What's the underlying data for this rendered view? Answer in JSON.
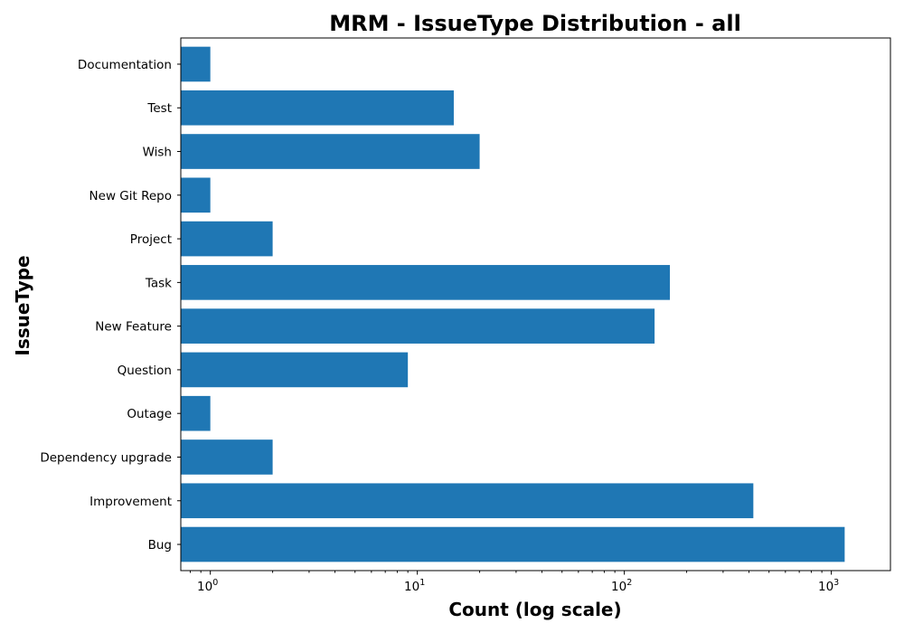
{
  "chart_data": {
    "type": "bar",
    "orientation": "horizontal",
    "title": "MRM - IssueType Distribution - all",
    "xlabel": "Count (log scale)",
    "ylabel": "IssueType",
    "xscale": "log",
    "xlim": [
      0.72,
      1930
    ],
    "bar_color": "#1f77b4",
    "grid": false,
    "categories": [
      "Bug",
      "Improvement",
      "Dependency upgrade",
      "Outage",
      "Question",
      "New Feature",
      "Task",
      "Project",
      "New Git Repo",
      "Wish",
      "Test",
      "Documentation"
    ],
    "values": [
      1160,
      420,
      2,
      1,
      9,
      140,
      166,
      2,
      1,
      20,
      15,
      1
    ],
    "xticks": [
      {
        "base": "10",
        "exp": "0",
        "value": 1
      },
      {
        "base": "10",
        "exp": "1",
        "value": 10
      },
      {
        "base": "10",
        "exp": "2",
        "value": 100
      },
      {
        "base": "10",
        "exp": "3",
        "value": 1000
      }
    ]
  }
}
